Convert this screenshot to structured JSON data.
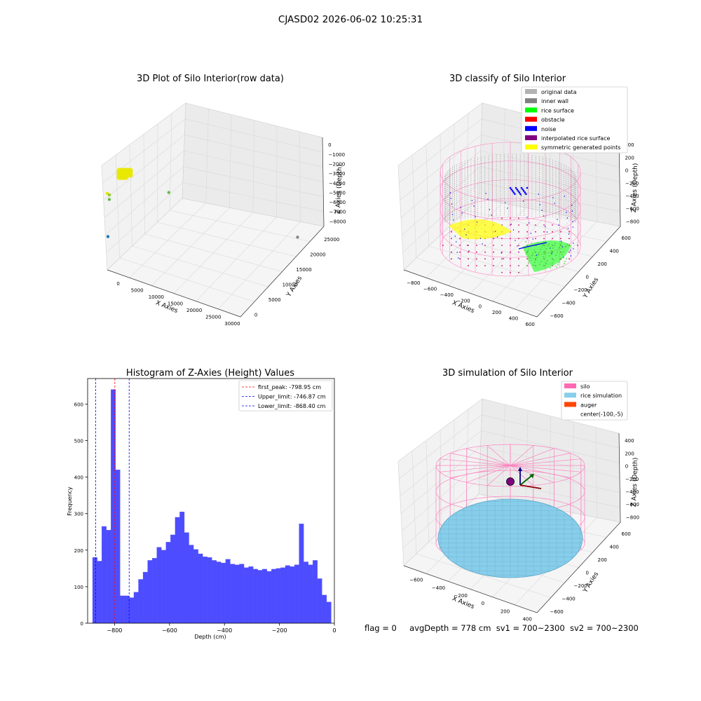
{
  "figure": {
    "suptitle": "CJASD02 2026-06-02 10:25:31",
    "info": {
      "flag": "flag = 0",
      "avg_depth": "avgDepth = 778 cm",
      "sv1": "sv1 = 700~2300",
      "sv2": "sv2 = 700~2300"
    }
  },
  "colors": {
    "original": "#b3b3b3",
    "inner_wall": "#808080",
    "rice_surface": "#00ff00",
    "obstacle": "#ff0000",
    "noise": "#0000ff",
    "interpolated": "#800080",
    "symmetric": "#ffff00",
    "silo": "#ff69b4",
    "rice_sim": "#87ceeb",
    "auger": "#ff4500",
    "hist_bar": "#4d4dff"
  },
  "chart_data": [
    {
      "type": "scatter",
      "title": "3D Plot of Silo Interior(row data)",
      "xlabel": "X Axies",
      "ylabel": "Y Axies",
      "zlabel": "Z Axies (Depth)",
      "xticks": [
        "0",
        "5000",
        "10000",
        "15000",
        "20000",
        "25000",
        "30000"
      ],
      "yticks": [
        "0",
        "5000",
        "10000",
        "15000",
        "20000",
        "25000"
      ],
      "zticks": [
        "0",
        "−1000",
        "−2000",
        "−3000",
        "−4000",
        "−5000",
        "−6000",
        "−7000",
        "−8000"
      ],
      "points": [
        {
          "x": 0,
          "y": 0,
          "z": -2600,
          "color": "#e6e600"
        },
        {
          "x": 200,
          "y": 500,
          "z": -2800,
          "color": "#99cc33"
        },
        {
          "x": 300,
          "y": 300,
          "z": -3100,
          "color": "#66bb44"
        },
        {
          "x": 9000,
          "y": 9000,
          "z": -3300,
          "color": "#66bb44"
        },
        {
          "x": 100,
          "y": 100,
          "z": -6000,
          "color": "#1f77b4"
        },
        {
          "x": 29000,
          "y": 26000,
          "z": -7900,
          "color": "#888888"
        }
      ]
    },
    {
      "type": "scatter",
      "title": "3D classify of Silo Interior",
      "xlabel": "X Axies",
      "ylabel": "Y Axies",
      "zlabel": "Z Axies (Depth)",
      "xticks": [
        "−800",
        "−600",
        "−400",
        "−200",
        "0",
        "200",
        "400",
        "600"
      ],
      "yticks": [
        "−600",
        "−400",
        "−200",
        "0",
        "200",
        "400",
        "600"
      ],
      "zticks": [
        "400",
        "200",
        "0",
        "−200",
        "−400",
        "−600",
        "−800"
      ],
      "legend": [
        "original data",
        "inner wall",
        "rice surface",
        "obstacle",
        "noise",
        "interpolated rice surface",
        "symmetric generated points"
      ],
      "legend_placement": "top-right"
    },
    {
      "type": "bar",
      "title": "Histogram of Z-Axies (Height) Values",
      "xlabel": "Depth (cm)",
      "ylabel": "Frequency",
      "xlim": [
        -898,
        0
      ],
      "ylim": [
        0,
        670
      ],
      "bin_start": -880,
      "bin_width": 16.7,
      "xticks": [
        "−800",
        "−600",
        "−400",
        "−200",
        "0"
      ],
      "yticks": [
        "0",
        "100",
        "200",
        "300",
        "400",
        "500",
        "600"
      ],
      "values": [
        180,
        170,
        265,
        255,
        640,
        420,
        75,
        75,
        70,
        85,
        120,
        140,
        172,
        178,
        208,
        200,
        222,
        242,
        290,
        305,
        248,
        214,
        202,
        190,
        182,
        180,
        172,
        168,
        165,
        175,
        162,
        160,
        162,
        152,
        155,
        148,
        145,
        148,
        142,
        148,
        150,
        152,
        158,
        155,
        160,
        272,
        168,
        160,
        172,
        122,
        77,
        58
      ],
      "vlines": [
        {
          "label": "first_peak: -798.95 cm",
          "x": -798.95,
          "color": "#ff0000"
        },
        {
          "label": "Upper_limit: -746.87 cm",
          "x": -746.87,
          "color": "#0000ff"
        },
        {
          "label": "Lower_limit: -868.40 cm",
          "x": -868.4,
          "color": "#0000ff"
        }
      ],
      "legend_placement": "top-right"
    },
    {
      "type": "scatter",
      "title": "3D simulation of Silo Interior",
      "xlabel": "X Axies",
      "ylabel": "Y Axies",
      "zlabel": "Z Axies (Depth)",
      "xticks": [
        "−600",
        "−400",
        "−200",
        "0",
        "200",
        "400"
      ],
      "yticks": [
        "−600",
        "−400",
        "−200",
        "0",
        "200",
        "400",
        "600"
      ],
      "zticks": [
        "400",
        "200",
        "0",
        "−200",
        "−400",
        "−600",
        "−800"
      ],
      "legend": [
        "silo",
        "rice simulation",
        "auger",
        "center(-100,-5)"
      ],
      "legend_placement": "top-right"
    }
  ]
}
